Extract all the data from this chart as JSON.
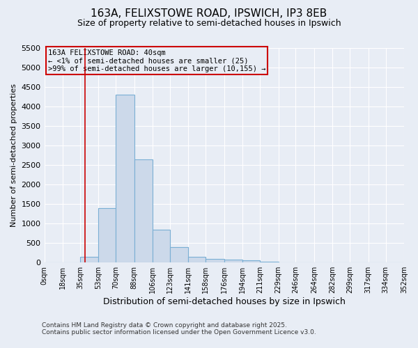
{
  "title": "163A, FELIXSTOWE ROAD, IPSWICH, IP3 8EB",
  "subtitle": "Size of property relative to semi-detached houses in Ipswich",
  "xlabel": "Distribution of semi-detached houses by size in Ipswich",
  "ylabel": "Number of semi-detached properties",
  "bin_edges": [
    0,
    18,
    35,
    53,
    70,
    88,
    106,
    123,
    141,
    158,
    176,
    194,
    211,
    229,
    246,
    264,
    282,
    299,
    317,
    334,
    352
  ],
  "bin_counts": [
    2,
    8,
    150,
    1400,
    4300,
    2650,
    850,
    400,
    150,
    100,
    70,
    50,
    20,
    10,
    5,
    3,
    2,
    1,
    1,
    1
  ],
  "bar_color": "#ccd9ea",
  "bar_edge_color": "#7aafd4",
  "subject_value": 40,
  "subject_label": "163A FELIXSTOWE ROAD: 40sqm",
  "annotation_line1": "← <1% of semi-detached houses are smaller (25)",
  "annotation_line2": ">99% of semi-detached houses are larger (10,155) →",
  "annotation_box_color": "#cc0000",
  "vline_color": "#cc0000",
  "ylim": [
    0,
    5500
  ],
  "yticks": [
    0,
    500,
    1000,
    1500,
    2000,
    2500,
    3000,
    3500,
    4000,
    4500,
    5000,
    5500
  ],
  "background_color": "#e8edf5",
  "grid_color": "#ffffff",
  "footer_line1": "Contains HM Land Registry data © Crown copyright and database right 2025.",
  "footer_line2": "Contains public sector information licensed under the Open Government Licence v3.0."
}
